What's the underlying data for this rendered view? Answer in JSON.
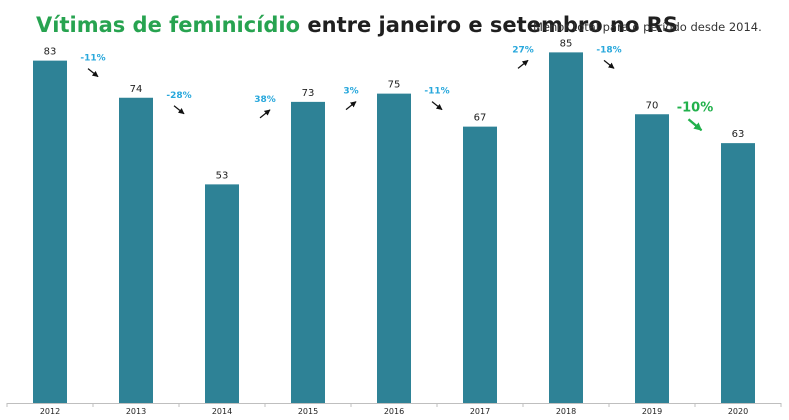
{
  "title": {
    "highlight": "Vítimas de feminicídio",
    "rest": " entre janeiro e setembro no RS"
  },
  "subtitle": "Menor total para o período desde 2014.",
  "colors": {
    "bar": "#2e8296",
    "title_highlight": "#27a350",
    "pct_label": "#29a8dc",
    "pct_highlight": "#22b14c"
  },
  "chart_data": {
    "type": "bar",
    "categories": [
      "2012",
      "2013",
      "2014",
      "2015",
      "2016",
      "2017",
      "2018",
      "2019",
      "2020"
    ],
    "values": [
      83,
      74,
      53,
      73,
      75,
      67,
      85,
      70,
      63
    ],
    "data_labels": [
      "83",
      "74",
      "53",
      "73",
      "75",
      "67",
      "85",
      "70",
      "63"
    ],
    "annotations": [
      {
        "between": [
          "2012",
          "2013"
        ],
        "label": "-11%",
        "direction": "down",
        "highlight": false
      },
      {
        "between": [
          "2013",
          "2014"
        ],
        "label": "-28%",
        "direction": "down",
        "highlight": false
      },
      {
        "between": [
          "2014",
          "2015"
        ],
        "label": "38%",
        "direction": "up",
        "highlight": false
      },
      {
        "between": [
          "2015",
          "2016"
        ],
        "label": "3%",
        "direction": "up",
        "highlight": false
      },
      {
        "between": [
          "2016",
          "2017"
        ],
        "label": "-11%",
        "direction": "down",
        "highlight": false
      },
      {
        "between": [
          "2017",
          "2018"
        ],
        "label": "27%",
        "direction": "up",
        "highlight": false
      },
      {
        "between": [
          "2018",
          "2019"
        ],
        "label": "-18%",
        "direction": "down",
        "highlight": false
      },
      {
        "between": [
          "2019",
          "2020"
        ],
        "label": "-10%",
        "direction": "down",
        "highlight": true
      }
    ],
    "ylim": [
      0,
      85
    ],
    "grid": false,
    "legend": "none",
    "xlabel": "",
    "ylabel": ""
  }
}
